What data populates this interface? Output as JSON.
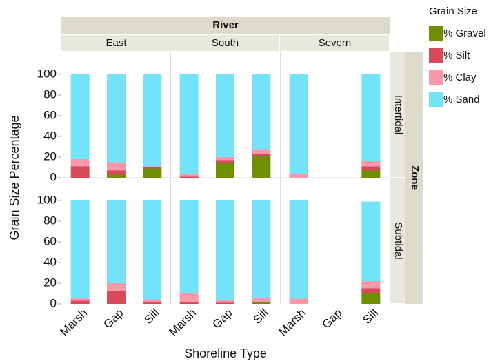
{
  "chart_data": {
    "type": "bar",
    "stacked": true,
    "x_label": "Shoreline Type",
    "y_label": "Grain Size Percentage",
    "legend_title": "Grain Size",
    "column_facet_title": "River",
    "columns": [
      "East",
      "South",
      "Severn"
    ],
    "row_facet_title": "Zone",
    "rows": [
      "Intertidal",
      "Subtidal"
    ],
    "categories": [
      "Marsh",
      "Gap",
      "Sill"
    ],
    "ylim": [
      0,
      122
    ],
    "yticks": [
      0,
      20,
      40,
      60,
      80,
      100
    ],
    "series": [
      {
        "name": "% Gravel",
        "color": "#6f8f00",
        "values": [
          [
            [
              0,
              3,
              9
            ],
            [
              0,
              14,
              21
            ],
            [
              0,
              null,
              7
            ]
          ],
          [
            [
              0,
              0,
              0
            ],
            [
              0,
              0,
              1
            ],
            [
              0,
              null,
              10
            ]
          ]
        ]
      },
      {
        "name": "% Silt",
        "color": "#d64a5a",
        "values": [
          [
            [
              11,
              4,
              1
            ],
            [
              1,
              3,
              2
            ],
            [
              0,
              null,
              4
            ]
          ],
          [
            [
              3,
              12,
              2
            ],
            [
              2,
              1,
              1
            ],
            [
              0,
              null,
              5
            ]
          ]
        ]
      },
      {
        "name": "% Clay",
        "color": "#f799a8",
        "values": [
          [
            [
              7,
              8,
              1
            ],
            [
              3,
              3,
              4
            ],
            [
              4,
              null,
              5
            ]
          ],
          [
            [
              3,
              8,
              2
            ],
            [
              8,
              3,
              4
            ],
            [
              5,
              null,
              7
            ]
          ]
        ]
      },
      {
        "name": "% Sand",
        "color": "#74e2fa",
        "values": [
          [
            [
              82,
              85,
              89
            ],
            [
              96,
              80,
              73
            ],
            [
              96,
              null,
              84
            ]
          ],
          [
            [
              94,
              80,
              96
            ],
            [
              90,
              96,
              94
            ],
            [
              95,
              null,
              77
            ]
          ]
        ]
      }
    ]
  }
}
